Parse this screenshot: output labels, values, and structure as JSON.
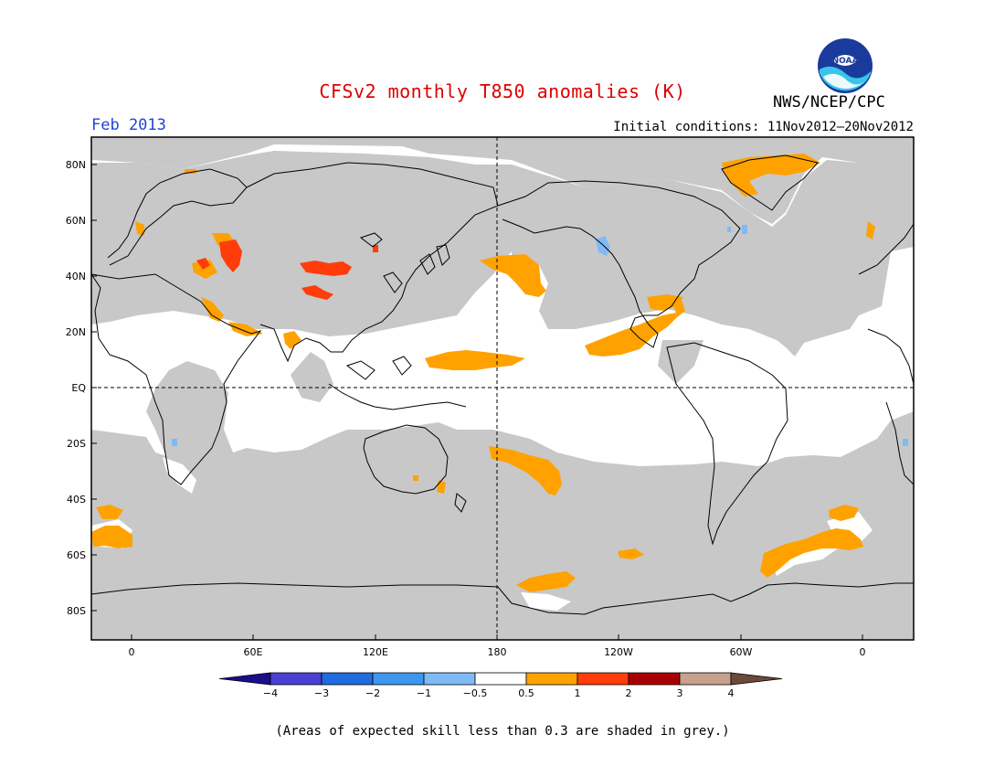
{
  "header": {
    "title": "CFSv2 monthly T850 anomalies (K)",
    "period": "Feb 2013",
    "initial_conditions": "Initial conditions: 11Nov2012–20Nov2012",
    "agency": "NWS/NCEP/CPC",
    "logo_text": "NOAA"
  },
  "map": {
    "lat_labels": [
      "80N",
      "60N",
      "40N",
      "20N",
      "EQ",
      "20S",
      "40S",
      "60S",
      "80S"
    ],
    "lon_labels": [
      "0",
      "60E",
      "120E",
      "180",
      "120W",
      "60W",
      "0"
    ]
  },
  "legend": {
    "labels": [
      "−4",
      "−3",
      "−2",
      "−1",
      "−0.5",
      "0.5",
      "1",
      "2",
      "3",
      "4"
    ],
    "colors": [
      "#1c0d8c",
      "#4a3fd4",
      "#1f6be0",
      "#3d96f0",
      "#7fbaf5",
      "#ffffff",
      "#ffa200",
      "#ff3c0a",
      "#a80000",
      "#c9a08c",
      "#6b4a3a"
    ]
  },
  "colors": {
    "skill_grey": "#c8c8c8",
    "title_red": "#dd0000",
    "period_blue": "#1f44d8"
  },
  "footnote": "(Areas of expected skill less than 0.3 are shaded in grey.)"
}
